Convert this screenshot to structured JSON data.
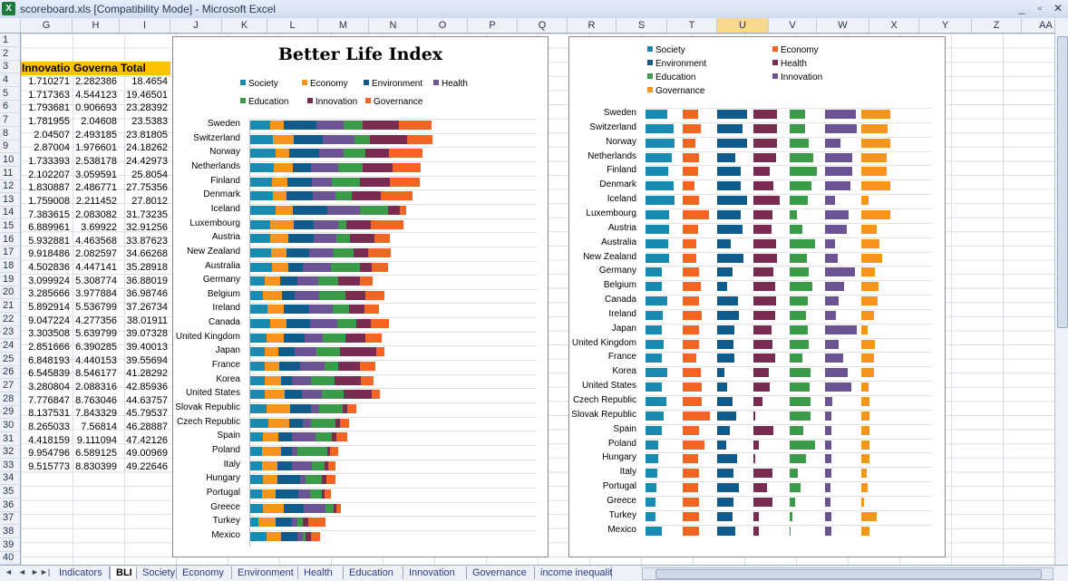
{
  "window": {
    "title": "scoreboard.xls  [Compatibility Mode] - Microsoft Excel",
    "minimize": "_",
    "restore": "▫",
    "close": "✕"
  },
  "columns": [
    "G",
    "H",
    "I",
    "J",
    "K",
    "L",
    "M",
    "N",
    "O",
    "P",
    "Q",
    "R",
    "S",
    "T",
    "U",
    "V",
    "W",
    "X",
    "Y",
    "Z",
    "AA"
  ],
  "selected_column": "U",
  "rows": [
    "1",
    "2",
    "3",
    "4",
    "5",
    "6",
    "7",
    "8",
    "9",
    "10",
    "11",
    "12",
    "13",
    "14",
    "15",
    "16",
    "17",
    "18",
    "19",
    "20",
    "21",
    "22",
    "23",
    "24",
    "25",
    "26",
    "27",
    "28",
    "29",
    "30",
    "31",
    "32",
    "33",
    "34",
    "35",
    "36",
    "37",
    "38",
    "39",
    "40"
  ],
  "table": {
    "headers": [
      "Innovatio",
      "Governa",
      "Total"
    ],
    "rows": [
      [
        "1.710271",
        "2.282386",
        "18.4654"
      ],
      [
        "1.717363",
        "4.544123",
        "19.46501"
      ],
      [
        "1.793681",
        "0.906693",
        "23.28392"
      ],
      [
        "1.781955",
        "2.04608",
        "23.5383"
      ],
      [
        "2.04507",
        "2.493185",
        "23.81805"
      ],
      [
        "2.87004",
        "1.976601",
        "24.18262"
      ],
      [
        "1.733393",
        "2.538178",
        "24.42973"
      ],
      [
        "2.102207",
        "3.059591",
        "25.8054"
      ],
      [
        "1.830887",
        "2.486771",
        "27.75356"
      ],
      [
        "1.759008",
        "2.211452",
        "27.8012"
      ],
      [
        "7.383615",
        "2.083082",
        "31.73235"
      ],
      [
        "6.889961",
        "3.69922",
        "32.91256"
      ],
      [
        "5.932881",
        "4.463568",
        "33.87623"
      ],
      [
        "9.918486",
        "2.082597",
        "34.66268"
      ],
      [
        "4.502836",
        "4.447141",
        "35.28918"
      ],
      [
        "3.099924",
        "5.308774",
        "36.88019"
      ],
      [
        "3.285666",
        "3.977884",
        "36.98746"
      ],
      [
        "5.892914",
        "5.536799",
        "37.26734"
      ],
      [
        "9.047224",
        "4.277356",
        "38.01911"
      ],
      [
        "3.303508",
        "5.639799",
        "39.07328"
      ],
      [
        "2.851666",
        "6.390285",
        "39.40013"
      ],
      [
        "6.848193",
        "4.440153",
        "39.55694"
      ],
      [
        "6.545839",
        "8.546177",
        "41.28292"
      ],
      [
        "3.280804",
        "2.088316",
        "42.85936"
      ],
      [
        "7.776847",
        "8.763046",
        "44.63757"
      ],
      [
        "8.137531",
        "7.843329",
        "45.79537"
      ],
      [
        "8.265033",
        "7.56814",
        "46.28887"
      ],
      [
        "4.418159",
        "9.111094",
        "47.42126"
      ],
      [
        "9.954796",
        "6.589125",
        "49.00969"
      ],
      [
        "9.515773",
        "8.830399",
        "49.22646"
      ]
    ]
  },
  "colors": {
    "Society": "#1a8bb0",
    "Economy": "#f7941d",
    "Environment": "#0f5b8c",
    "Health": "#6b5394",
    "Education": "#3a9b48",
    "Innovation": "#7a2b52",
    "Governance": "#f26522",
    "Innovation2": "#6b5394",
    "Governance2": "#f7941d"
  },
  "chart1": {
    "title": "Better Life Index",
    "legend": [
      "Society",
      "Economy",
      "Environment",
      "Health",
      "Education",
      "Innovation",
      "Governance"
    ],
    "countries": [
      "Sweden",
      "Switzerland",
      "Norway",
      "Netherlands",
      "Finland",
      "Denmark",
      "Iceland",
      "Luxembourg",
      "Austria",
      "New Zealand",
      "Australia",
      "Germany",
      "Belgium",
      "Ireland",
      "Canada",
      "United Kingdom",
      "Japan",
      "France",
      "Korea",
      "United States",
      "Slovak Republic",
      "Czech Republic",
      "Spain",
      "Poland",
      "Italy",
      "Hungary",
      "Portugal",
      "Greece",
      "Turkey",
      "Mexico"
    ],
    "series": [
      {
        "name": "Society",
        "values": [
          3.0,
          3.5,
          3.8,
          3.6,
          3.3,
          3.5,
          3.9,
          3.0,
          3.0,
          3.2,
          3.3,
          2.2,
          2.0,
          2.6,
          3.0,
          2.5,
          2.2,
          2.3,
          2.2,
          2.3,
          2.5,
          2.8,
          2.0,
          1.8,
          1.9,
          2.0,
          1.8,
          2.0,
          1.3,
          2.5
        ]
      },
      {
        "name": "Economy",
        "values": [
          2.1,
          3.0,
          2.0,
          2.8,
          2.3,
          2.0,
          2.5,
          3.5,
          2.7,
          2.2,
          2.4,
          2.3,
          2.8,
          2.5,
          2.4,
          2.6,
          2.0,
          2.1,
          2.5,
          2.9,
          3.5,
          3.1,
          2.2,
          2.9,
          2.2,
          2.1,
          2.0,
          3.0,
          2.5,
          2.2
        ]
      },
      {
        "name": "Environment",
        "values": [
          4.7,
          4.3,
          4.5,
          2.7,
          3.6,
          3.8,
          5.0,
          3.0,
          3.7,
          3.4,
          2.1,
          2.5,
          1.9,
          3.7,
          3.5,
          3.0,
          2.5,
          3.1,
          1.5,
          2.5,
          3.0,
          1.9,
          2.0,
          1.6,
          2.1,
          3.4,
          3.4,
          3.0,
          2.4,
          2.4
        ]
      },
      {
        "name": "Health",
        "values": [
          4.1,
          4.6,
          3.5,
          3.9,
          2.9,
          3.3,
          4.8,
          3.5,
          3.4,
          3.6,
          4.2,
          3.1,
          3.6,
          3.5,
          4.0,
          2.7,
          3.2,
          3.6,
          2.9,
          3.0,
          1.3,
          1.3,
          3.5,
          0.8,
          3.0,
          0.8,
          1.7,
          3.2,
          0.8,
          0.8
        ]
      },
      {
        "name": "Education",
        "values": [
          2.7,
          2.3,
          3.2,
          3.6,
          4.1,
          2.5,
          4.2,
          1.3,
          2.0,
          2.9,
          4.2,
          2.9,
          3.8,
          2.3,
          2.8,
          3.3,
          3.4,
          2.0,
          3.4,
          3.2,
          3.4,
          3.6,
          2.4,
          4.3,
          1.8,
          2.4,
          1.7,
          1.2,
          0.8,
          0.3
        ]
      },
      {
        "name": "Innovation",
        "values": [
          5.4,
          5.5,
          3.5,
          4.4,
          4.5,
          4.2,
          1.7,
          3.6,
          3.6,
          2.1,
          1.8,
          3.3,
          3.0,
          2.3,
          2.1,
          3.0,
          5.4,
          3.1,
          3.9,
          4.1,
          0.7,
          0.6,
          0.7,
          0.4,
          0.6,
          0.6,
          0.4,
          0.4,
          0.9,
          0.9
        ]
      },
      {
        "name": "Governance",
        "values": [
          4.8,
          3.7,
          4.9,
          4.2,
          4.3,
          4.7,
          1.0,
          4.7,
          2.3,
          3.4,
          2.4,
          1.8,
          2.8,
          2.1,
          2.7,
          2.3,
          1.1,
          2.3,
          1.9,
          1.2,
          1.3,
          1.4,
          1.6,
          1.3,
          1.0,
          1.3,
          1.0,
          0.6,
          2.5,
          1.3
        ]
      }
    ]
  },
  "chart2": {
    "legend": [
      "Society",
      "Economy",
      "Environment",
      "Health",
      "Education",
      "Innovation",
      "Governance"
    ],
    "countries": [
      "Sweden",
      "Switzerland",
      "Norway",
      "Netherlands",
      "Finland",
      "Denmark",
      "Iceland",
      "Luxembourg",
      "Austria",
      "Australia",
      "New Zealand",
      "Germany",
      "Belgium",
      "Canada",
      "Ireland",
      "Japan",
      "United Kingdom",
      "France",
      "Korea",
      "United States",
      "Czech Republic",
      "Slovak Republic",
      "Spain",
      "Poland",
      "Hungary",
      "Italy",
      "Portugal",
      "Greece",
      "Turkey",
      "Mexico"
    ],
    "series": [
      {
        "name": "Society",
        "values": [
          2.2,
          2.8,
          2.9,
          2.6,
          2.3,
          2.8,
          2.9,
          2.4,
          2.4,
          2.3,
          2.4,
          1.6,
          1.6,
          2.2,
          1.7,
          1.6,
          1.8,
          1.6,
          2.2,
          1.6,
          2.1,
          1.8,
          1.6,
          1.3,
          1.3,
          1.2,
          1.1,
          1.0,
          1.0,
          1.6
        ]
      },
      {
        "name": "Economy",
        "values": [
          1.5,
          1.8,
          1.3,
          1.6,
          1.5,
          1.2,
          1.6,
          2.6,
          1.5,
          1.4,
          1.4,
          1.6,
          1.8,
          1.6,
          1.9,
          1.6,
          1.6,
          1.4,
          1.8,
          1.9,
          1.9,
          2.7,
          1.6,
          2.2,
          1.5,
          1.6,
          1.5,
          1.6,
          1.6,
          1.6
        ]
      },
      {
        "name": "Environment",
        "values": [
          3.0,
          2.5,
          3.0,
          1.8,
          2.4,
          2.4,
          3.0,
          2.4,
          2.5,
          1.4,
          2.6,
          1.5,
          1.0,
          2.1,
          2.2,
          1.7,
          1.6,
          1.7,
          0.7,
          1.0,
          1.5,
          1.9,
          1.3,
          0.9,
          2.0,
          1.6,
          2.2,
          1.6,
          1.5,
          1.8
        ]
      },
      {
        "name": "Health",
        "values": [
          2.4,
          2.4,
          2.4,
          2.3,
          1.6,
          2.0,
          2.6,
          1.9,
          1.8,
          2.3,
          2.4,
          2.0,
          2.2,
          2.3,
          2.2,
          1.8,
          1.9,
          2.2,
          1.5,
          1.6,
          0.9,
          0.2,
          2.0,
          0.5,
          0.2,
          1.9,
          1.4,
          1.9,
          0.5,
          0.5
        ]
      },
      {
        "name": "Education",
        "values": [
          1.5,
          1.5,
          1.9,
          2.4,
          2.7,
          2.2,
          1.8,
          0.7,
          1.3,
          2.5,
          1.7,
          1.9,
          2.3,
          1.8,
          1.6,
          1.8,
          1.9,
          1.3,
          2.1,
          2.0,
          2.1,
          2.1,
          1.4,
          2.5,
          1.6,
          0.8,
          1.1,
          0.5,
          0.3,
          0.1
        ]
      },
      {
        "name": "Innovation",
        "values": [
          3.1,
          3.2,
          1.5,
          2.7,
          2.7,
          2.5,
          1.0,
          2.4,
          2.2,
          1.0,
          1.3,
          3.0,
          1.9,
          1.4,
          1.1,
          3.2,
          1.4,
          1.8,
          2.3,
          2.6,
          0.7,
          0.6,
          0.6,
          0.6,
          0.6,
          0.6,
          0.5,
          0.5,
          0.6,
          0.6
        ]
      },
      {
        "name": "Governance",
        "values": [
          2.9,
          2.6,
          2.9,
          2.5,
          2.5,
          2.9,
          0.7,
          2.9,
          1.5,
          1.8,
          2.1,
          1.4,
          1.7,
          1.6,
          1.3,
          0.6,
          1.4,
          1.3,
          1.3,
          0.7,
          0.8,
          0.8,
          0.8,
          0.8,
          0.8,
          0.5,
          0.6,
          0.3,
          1.5,
          0.8
        ]
      }
    ]
  },
  "sheet_tabs": [
    "Indicators",
    "BLI",
    "Society",
    "Economy",
    "Environment",
    "Health",
    "Education",
    "Innovation",
    "Governance",
    "income inequalit"
  ],
  "active_tab": "BLI",
  "nav": {
    "first": "◄",
    "prev": "◄",
    "next": "►",
    "last": "►|"
  }
}
